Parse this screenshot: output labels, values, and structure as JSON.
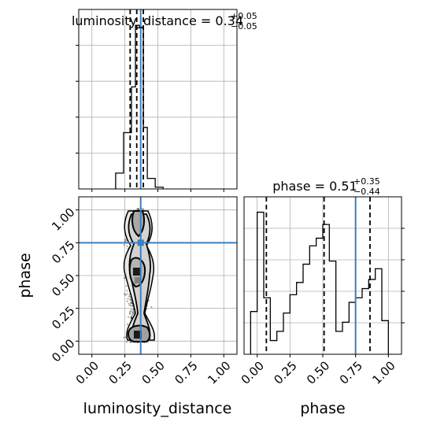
{
  "chart_data": {
    "type": "corner",
    "truth": {
      "luminosity_distance": 0.37,
      "phase": 0.75,
      "color": "#3d7fbf"
    },
    "panels": [
      {
        "id": "hist-luminosity",
        "type": "histogram",
        "parameter": "luminosity_distance",
        "title": {
          "lhs": "luminosity_distance = 0.34",
          "plus": "+0.05",
          "minus": "−0.05"
        },
        "xlim": [
          -0.1,
          1.1
        ],
        "bins": [
          {
            "x0": 0.18,
            "x1": 0.24,
            "count": 0.09
          },
          {
            "x0": 0.24,
            "x1": 0.3,
            "count": 0.32
          },
          {
            "x0": 0.3,
            "x1": 0.33,
            "count": 0.58
          },
          {
            "x0": 0.33,
            "x1": 0.36,
            "count": 0.93
          },
          {
            "x0": 0.36,
            "x1": 0.39,
            "count": 0.92
          },
          {
            "x0": 0.39,
            "x1": 0.42,
            "count": 0.35
          },
          {
            "x0": 0.42,
            "x1": 0.48,
            "count": 0.06
          },
          {
            "x0": 0.48,
            "x1": 0.54,
            "count": 0.01
          }
        ],
        "quantiles": [
          0.29,
          0.34,
          0.39
        ]
      },
      {
        "id": "hist-phase",
        "type": "histogram",
        "parameter": "phase",
        "title": {
          "lhs": "phase = 0.51",
          "plus": "+0.35",
          "minus": "−0.44"
        },
        "xlim": [
          -0.1,
          1.1
        ],
        "bins": [
          {
            "x0": -0.05,
            "x1": 0.0,
            "count": 0.28
          },
          {
            "x0": 0.0,
            "x1": 0.05,
            "count": 0.93
          },
          {
            "x0": 0.05,
            "x1": 0.1,
            "count": 0.37
          },
          {
            "x0": 0.1,
            "x1": 0.15,
            "count": 0.09
          },
          {
            "x0": 0.15,
            "x1": 0.2,
            "count": 0.15
          },
          {
            "x0": 0.2,
            "x1": 0.25,
            "count": 0.27
          },
          {
            "x0": 0.25,
            "x1": 0.3,
            "count": 0.39
          },
          {
            "x0": 0.3,
            "x1": 0.35,
            "count": 0.47
          },
          {
            "x0": 0.35,
            "x1": 0.4,
            "count": 0.59
          },
          {
            "x0": 0.4,
            "x1": 0.45,
            "count": 0.71
          },
          {
            "x0": 0.45,
            "x1": 0.5,
            "count": 0.76
          },
          {
            "x0": 0.5,
            "x1": 0.55,
            "count": 0.85
          },
          {
            "x0": 0.55,
            "x1": 0.6,
            "count": 0.61
          },
          {
            "x0": 0.6,
            "x1": 0.65,
            "count": 0.15
          },
          {
            "x0": 0.65,
            "x1": 0.7,
            "count": 0.21
          },
          {
            "x0": 0.7,
            "x1": 0.75,
            "count": 0.34
          },
          {
            "x0": 0.75,
            "x1": 0.8,
            "count": 0.37
          },
          {
            "x0": 0.8,
            "x1": 0.85,
            "count": 0.43
          },
          {
            "x0": 0.85,
            "x1": 0.9,
            "count": 0.49
          },
          {
            "x0": 0.9,
            "x1": 0.95,
            "count": 0.56
          },
          {
            "x0": 0.95,
            "x1": 1.0,
            "count": 0.22
          }
        ],
        "quantiles": [
          0.07,
          0.51,
          0.86
        ]
      },
      {
        "id": "joint",
        "type": "2d-density",
        "x_parameter": "luminosity_distance",
        "y_parameter": "phase",
        "xlim": [
          -0.1,
          1.1
        ],
        "ylim": [
          -0.1,
          1.1
        ],
        "xlabel": "luminosity_distance",
        "ylabel": "phase",
        "xticks": [
          "0.00",
          "0.25",
          "0.50",
          "0.75",
          "1.00"
        ],
        "yticks": [
          "0.00",
          "0.25",
          "0.50",
          "0.75",
          "1.00"
        ],
        "density_modes": [
          {
            "x": 0.34,
            "y": 0.05
          },
          {
            "x": 0.34,
            "y": 0.5
          },
          {
            "x": 0.34,
            "y": 0.95
          }
        ]
      }
    ],
    "bottom_right_axis": {
      "xlabel": "phase",
      "xticks": [
        "0.00",
        "0.25",
        "0.50",
        "0.75",
        "1.00"
      ]
    },
    "grid": true
  }
}
